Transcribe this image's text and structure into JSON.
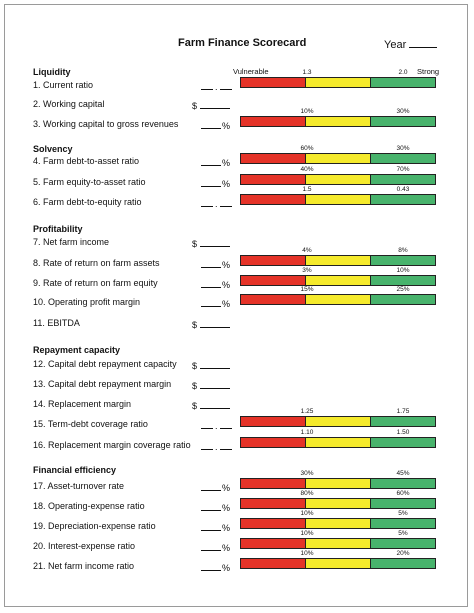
{
  "title": "Farm Finance Scorecard",
  "year_label": "Year",
  "legend": {
    "left": "Vulnerable",
    "right": "Strong"
  },
  "sections": {
    "liquidity": "Liquidity",
    "solvency": "Solvency",
    "profitability": "Profitability",
    "repayment": "Repayment capacity",
    "efficiency": "Financial efficiency"
  },
  "items": [
    {
      "label": "1. Current ratio",
      "entry_type": "ratio",
      "ticks": [
        "1.3",
        "2.0"
      ]
    },
    {
      "label": "2. Working capital",
      "entry_type": "dollar",
      "ticks": []
    },
    {
      "label": "3. Working capital to gross revenues",
      "entry_type": "percent",
      "ticks": [
        "10%",
        "30%"
      ]
    },
    {
      "label": "4. Farm debt-to-asset ratio",
      "entry_type": "percent",
      "ticks": [
        "60%",
        "30%"
      ]
    },
    {
      "label": "5. Farm equity-to-asset ratio",
      "entry_type": "percent",
      "ticks": [
        "40%",
        "70%"
      ]
    },
    {
      "label": "6. Farm debt-to-equity ratio",
      "entry_type": "ratio",
      "ticks": [
        "1.5",
        "0.43"
      ]
    },
    {
      "label": "7. Net farm income",
      "entry_type": "dollar",
      "ticks": []
    },
    {
      "label": "8. Rate of return on farm assets",
      "entry_type": "percent",
      "ticks": [
        "4%",
        "8%"
      ]
    },
    {
      "label": "9. Rate of return on farm equity",
      "entry_type": "percent",
      "ticks": [
        "3%",
        "10%"
      ]
    },
    {
      "label": "10. Operating profit margin",
      "entry_type": "percent",
      "ticks": [
        "15%",
        "25%"
      ]
    },
    {
      "label": "11. EBITDA",
      "entry_type": "dollar",
      "ticks": []
    },
    {
      "label": "12. Capital debt repayment capacity",
      "entry_type": "dollar",
      "ticks": []
    },
    {
      "label": "13. Capital debt repayment margin",
      "entry_type": "dollar",
      "ticks": []
    },
    {
      "label": "14. Replacement margin",
      "entry_type": "dollar",
      "ticks": []
    },
    {
      "label": "15. Term-debt coverage ratio",
      "entry_type": "ratio",
      "ticks": [
        "1.25",
        "1.75"
      ]
    },
    {
      "label": "16. Replacement margin coverage ratio",
      "entry_type": "ratio",
      "ticks": [
        "1.10",
        "1.50"
      ]
    },
    {
      "label": "17. Asset-turnover rate",
      "entry_type": "percent",
      "ticks": [
        "30%",
        "45%"
      ]
    },
    {
      "label": "18. Operating-expense ratio",
      "entry_type": "percent",
      "ticks": [
        "80%",
        "60%"
      ]
    },
    {
      "label": "19. Depreciation-expense ratio",
      "entry_type": "percent",
      "ticks": [
        "10%",
        "5%"
      ]
    },
    {
      "label": "20. Interest-expense ratio",
      "entry_type": "percent",
      "ticks": [
        "10%",
        "5%"
      ]
    },
    {
      "label": "21. Net farm income ratio",
      "entry_type": "percent",
      "ticks": [
        "10%",
        "20%"
      ]
    }
  ],
  "entry_symbols": {
    "dollar": "$",
    "percent": "%",
    "ratio_sep": "."
  },
  "colors": {
    "vulnerable": "#e53328",
    "caution": "#f5ea2c",
    "strong": "#48b36c"
  }
}
